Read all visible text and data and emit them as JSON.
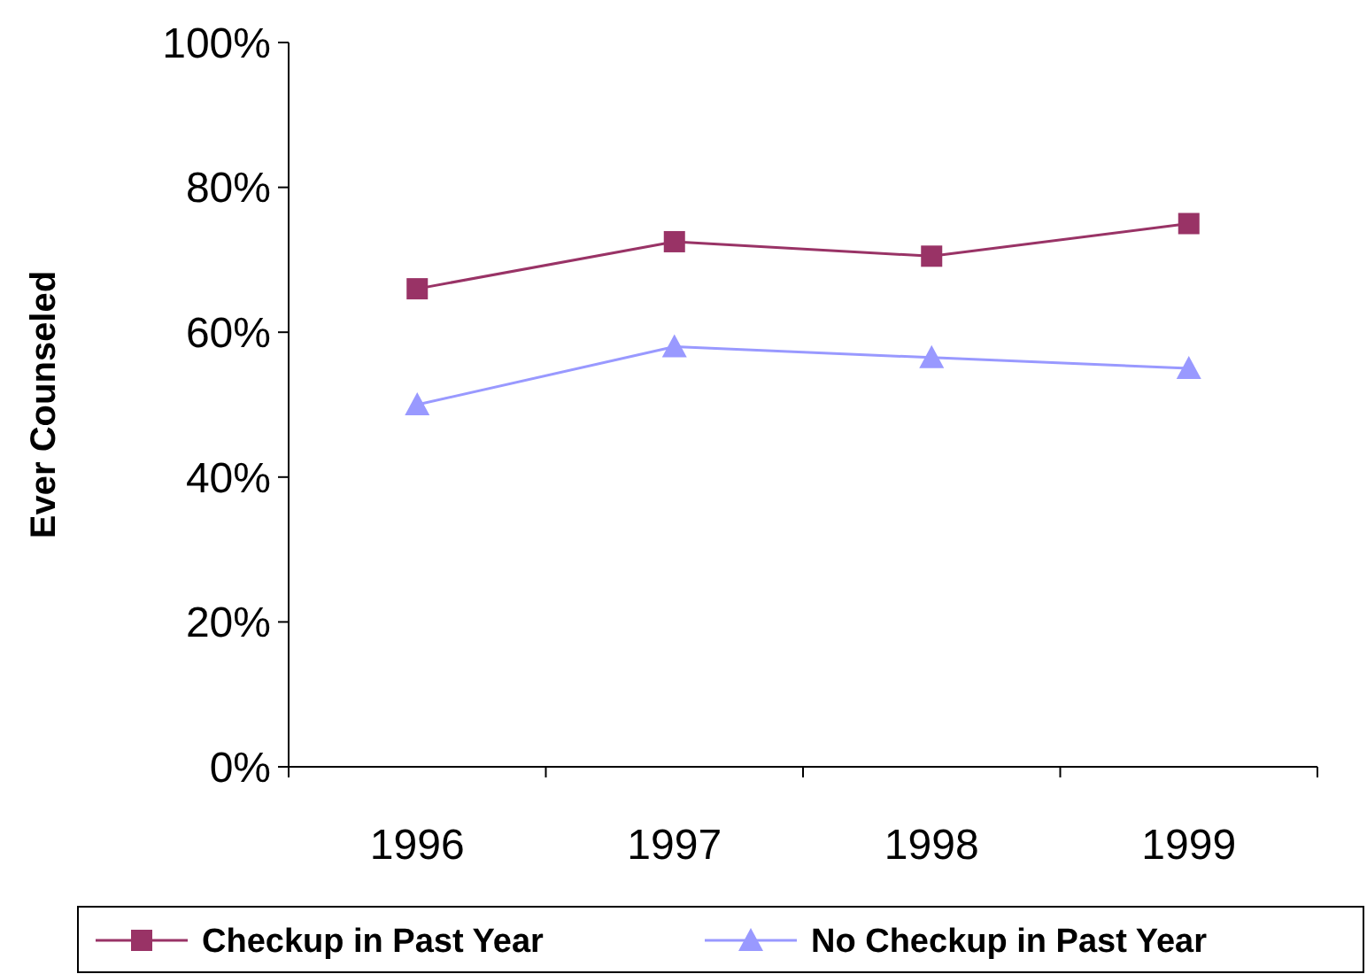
{
  "chart_data": {
    "type": "line",
    "ylabel": "Ever Counseled",
    "categories": [
      "1996",
      "1997",
      "1998",
      "1999"
    ],
    "series": [
      {
        "name": "Checkup in Past Year",
        "color": "#993366",
        "values": [
          66,
          72.5,
          70.5,
          75
        ],
        "marker": "square"
      },
      {
        "name": "No Checkup in Past Year",
        "color": "#9999ff",
        "values": [
          50,
          58,
          56.5,
          55
        ],
        "marker": "triangle"
      }
    ],
    "ylim": [
      0,
      100
    ],
    "yticks": [
      {
        "value": 0,
        "label": "0%"
      },
      {
        "value": 20,
        "label": "20%"
      },
      {
        "value": 40,
        "label": "40%"
      },
      {
        "value": 60,
        "label": "60%"
      },
      {
        "value": 80,
        "label": "80%"
      },
      {
        "value": 100,
        "label": "100%"
      }
    ],
    "grid": false,
    "legend": "bottom"
  }
}
